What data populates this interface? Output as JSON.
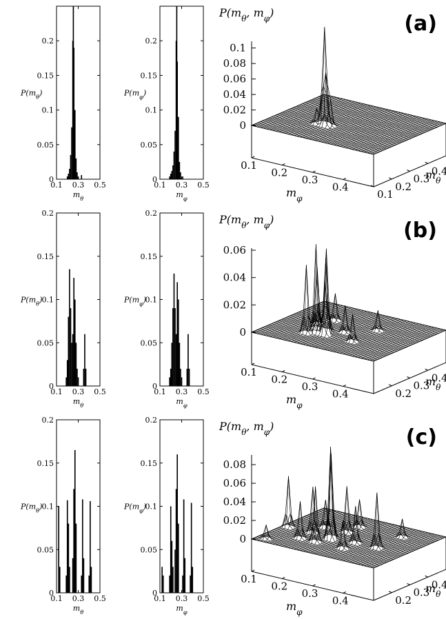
{
  "panels": [
    {
      "label": "(a)",
      "hist_theta": {
        "type": "bar",
        "ylabel": "P(m_θ)",
        "xlabel": "m_θ",
        "xlim": [
          0.1,
          0.5
        ],
        "ylim": [
          0,
          0.25
        ],
        "xticks": [
          "0.1",
          "0.3",
          "0.5"
        ],
        "yticks": [
          "0",
          "0.05",
          "0.1",
          "0.15",
          "0.2"
        ],
        "bars": [
          [
            0.2,
            0.004
          ],
          [
            0.21,
            0.008
          ],
          [
            0.22,
            0.015
          ],
          [
            0.23,
            0.035
          ],
          [
            0.24,
            0.075
          ],
          [
            0.25,
            0.2
          ],
          [
            0.255,
            0.25
          ],
          [
            0.26,
            0.19
          ],
          [
            0.27,
            0.1
          ],
          [
            0.28,
            0.03
          ],
          [
            0.29,
            0.01
          ],
          [
            0.3,
            0.004
          ],
          [
            0.33,
            0.006
          ]
        ]
      },
      "hist_phi": {
        "type": "bar",
        "ylabel": "P(m_φ)",
        "xlabel": "m_φ",
        "xlim": [
          0.1,
          0.5
        ],
        "ylim": [
          0,
          0.25
        ],
        "xticks": [
          "0.1",
          "0.3",
          "0.5"
        ],
        "yticks": [
          "0",
          "0.05",
          "0.1",
          "0.15",
          "0.2"
        ],
        "bars": [
          [
            0.19,
            0.004
          ],
          [
            0.2,
            0.008
          ],
          [
            0.21,
            0.012
          ],
          [
            0.22,
            0.02
          ],
          [
            0.23,
            0.04
          ],
          [
            0.24,
            0.07
          ],
          [
            0.25,
            0.2
          ],
          [
            0.255,
            0.25
          ],
          [
            0.26,
            0.17
          ],
          [
            0.27,
            0.09
          ],
          [
            0.28,
            0.025
          ],
          [
            0.29,
            0.01
          ],
          [
            0.31,
            0.004
          ]
        ]
      },
      "surface": {
        "type": "heatmap",
        "title": "P(m_θ, m_φ)",
        "zticks": [
          "0",
          "0.02",
          "0.04",
          "0.06",
          "0.08",
          "0.1"
        ],
        "zmax": 0.12,
        "x_axis_label": "m_φ",
        "y_axis_label": "m_θ",
        "xticks": [
          "0.1",
          "0.2",
          "0.3",
          "0.4"
        ],
        "yticks": [
          "0.1",
          "0.2",
          "0.3",
          "0.4"
        ],
        "peaks": [
          [
            0.25,
            0.25,
            0.12
          ],
          [
            0.26,
            0.24,
            0.06
          ],
          [
            0.24,
            0.26,
            0.04
          ],
          [
            0.27,
            0.25,
            0.03
          ],
          [
            0.23,
            0.24,
            0.02
          ]
        ]
      }
    },
    {
      "label": "(b)",
      "hist_theta": {
        "type": "bar",
        "ylabel": "P(m_θ)",
        "xlabel": "m_θ",
        "xlim": [
          0.1,
          0.5
        ],
        "ylim": [
          0,
          0.2
        ],
        "xticks": [
          "0.1",
          "0.3",
          "0.5"
        ],
        "yticks": [
          "0",
          "0.05",
          "0.1",
          "0.15",
          "0.2"
        ],
        "bars": [
          [
            0.19,
            0.01
          ],
          [
            0.2,
            0.03
          ],
          [
            0.21,
            0.08
          ],
          [
            0.22,
            0.135
          ],
          [
            0.23,
            0.09
          ],
          [
            0.24,
            0.05
          ],
          [
            0.25,
            0.06
          ],
          [
            0.26,
            0.125
          ],
          [
            0.27,
            0.1
          ],
          [
            0.28,
            0.05
          ],
          [
            0.29,
            0.02
          ],
          [
            0.3,
            0.01
          ],
          [
            0.35,
            0.02
          ],
          [
            0.36,
            0.06
          ],
          [
            0.37,
            0.02
          ]
        ]
      },
      "hist_phi": {
        "type": "bar",
        "ylabel": "P(m_φ)",
        "xlabel": "m_φ",
        "xlim": [
          0.1,
          0.5
        ],
        "ylim": [
          0,
          0.2
        ],
        "xticks": [
          "0.1",
          "0.3",
          "0.5"
        ],
        "yticks": [
          "0",
          "0.05",
          "0.1",
          "0.15",
          "0.2"
        ],
        "bars": [
          [
            0.19,
            0.01
          ],
          [
            0.2,
            0.02
          ],
          [
            0.21,
            0.05
          ],
          [
            0.22,
            0.09
          ],
          [
            0.23,
            0.13
          ],
          [
            0.24,
            0.09
          ],
          [
            0.25,
            0.06
          ],
          [
            0.26,
            0.12
          ],
          [
            0.27,
            0.1
          ],
          [
            0.28,
            0.05
          ],
          [
            0.29,
            0.02
          ],
          [
            0.3,
            0.01
          ],
          [
            0.35,
            0.02
          ],
          [
            0.36,
            0.06
          ],
          [
            0.37,
            0.02
          ]
        ]
      },
      "surface": {
        "type": "heatmap",
        "title": "P(m_θ, m_φ)",
        "zticks": [
          "0",
          "0.02",
          "0.04",
          "0.06"
        ],
        "zmax": 0.068,
        "x_axis_label": "m_φ",
        "y_axis_label": "m_θ",
        "xticks": [
          "0.1",
          "0.2",
          "0.3",
          "0.4"
        ],
        "yticks": [
          "0.2",
          "0.3",
          "0.4"
        ],
        "peaks": [
          [
            0.22,
            0.2,
            0.05
          ],
          [
            0.24,
            0.22,
            0.065
          ],
          [
            0.25,
            0.26,
            0.06
          ],
          [
            0.26,
            0.24,
            0.055
          ],
          [
            0.22,
            0.26,
            0.045
          ],
          [
            0.27,
            0.22,
            0.04
          ],
          [
            0.36,
            0.22,
            0.02
          ],
          [
            0.22,
            0.36,
            0.02
          ],
          [
            0.36,
            0.36,
            0.015
          ],
          [
            0.3,
            0.28,
            0.02
          ],
          [
            0.2,
            0.3,
            0.015
          ]
        ]
      }
    },
    {
      "label": "(c)",
      "hist_theta": {
        "type": "bar",
        "ylabel": "P(m_θ)",
        "xlabel": "m_θ",
        "xlim": [
          0.1,
          0.5
        ],
        "ylim": [
          0,
          0.2
        ],
        "xticks": [
          "0.1",
          "0.3",
          "0.5"
        ],
        "yticks": [
          "0",
          "0.05",
          "0.1",
          "0.15",
          "0.2"
        ],
        "bars": [
          [
            0.12,
            0.1
          ],
          [
            0.13,
            0.03
          ],
          [
            0.19,
            0.02
          ],
          [
            0.2,
            0.107
          ],
          [
            0.21,
            0.08
          ],
          [
            0.22,
            0.03
          ],
          [
            0.25,
            0.04
          ],
          [
            0.26,
            0.12
          ],
          [
            0.27,
            0.165
          ],
          [
            0.28,
            0.08
          ],
          [
            0.33,
            0.02
          ],
          [
            0.34,
            0.108
          ],
          [
            0.35,
            0.04
          ],
          [
            0.4,
            0.02
          ],
          [
            0.41,
            0.106
          ],
          [
            0.42,
            0.03
          ]
        ]
      },
      "hist_phi": {
        "type": "bar",
        "ylabel": "P(m_φ)",
        "xlabel": "m_φ",
        "xlim": [
          0.1,
          0.5
        ],
        "ylim": [
          0,
          0.2
        ],
        "xticks": [
          "0.1",
          "0.3",
          "0.5"
        ],
        "yticks": [
          "0",
          "0.05",
          "0.1",
          "0.15",
          "0.2"
        ],
        "bars": [
          [
            0.12,
            0.03
          ],
          [
            0.13,
            0.02
          ],
          [
            0.19,
            0.02
          ],
          [
            0.2,
            0.1
          ],
          [
            0.21,
            0.06
          ],
          [
            0.22,
            0.03
          ],
          [
            0.24,
            0.05
          ],
          [
            0.25,
            0.12
          ],
          [
            0.26,
            0.16
          ],
          [
            0.27,
            0.08
          ],
          [
            0.31,
            0.02
          ],
          [
            0.32,
            0.108
          ],
          [
            0.33,
            0.04
          ],
          [
            0.38,
            0.02
          ],
          [
            0.39,
            0.104
          ],
          [
            0.4,
            0.03
          ]
        ]
      },
      "surface": {
        "type": "heatmap",
        "title": "P(m_θ, m_φ)",
        "zticks": [
          "0",
          "0.02",
          "0.04",
          "0.06",
          "0.08"
        ],
        "zmax": 0.1,
        "x_axis_label": "m_φ",
        "y_axis_label": "m_θ",
        "xticks": [
          "0.1",
          "0.2",
          "0.3",
          "0.4"
        ],
        "yticks": [
          "0.2",
          "0.3",
          "0.4"
        ],
        "peaks": [
          [
            0.12,
            0.27,
            0.055
          ],
          [
            0.2,
            0.27,
            0.05
          ],
          [
            0.26,
            0.27,
            0.09
          ],
          [
            0.27,
            0.25,
            0.1
          ],
          [
            0.25,
            0.2,
            0.06
          ],
          [
            0.2,
            0.2,
            0.04
          ],
          [
            0.27,
            0.34,
            0.05
          ],
          [
            0.34,
            0.27,
            0.04
          ],
          [
            0.41,
            0.27,
            0.06
          ],
          [
            0.27,
            0.41,
            0.03
          ],
          [
            0.2,
            0.34,
            0.03
          ],
          [
            0.34,
            0.2,
            0.03
          ],
          [
            0.13,
            0.13,
            0.015
          ],
          [
            0.41,
            0.41,
            0.02
          ]
        ]
      }
    }
  ]
}
